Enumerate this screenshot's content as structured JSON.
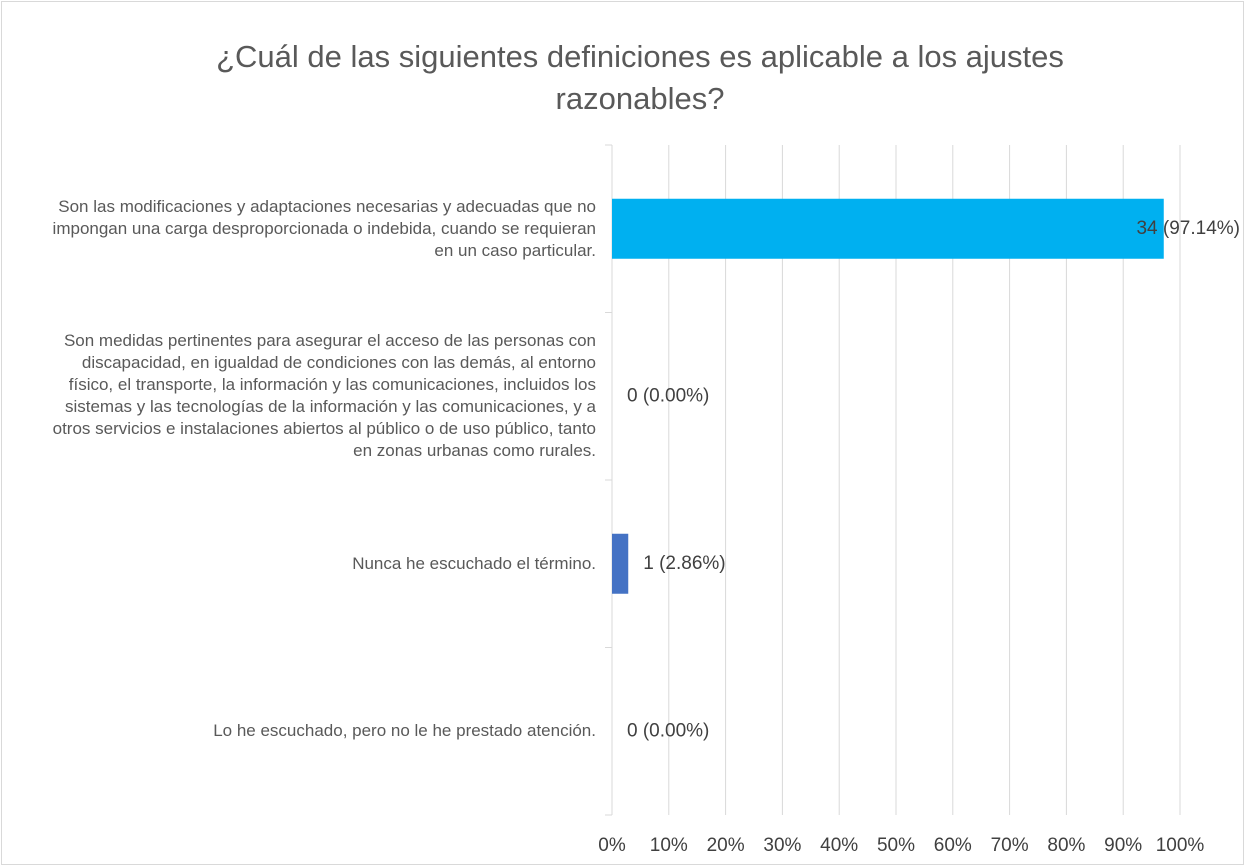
{
  "chart_data": {
    "type": "barh",
    "title": "¿Cuál de las siguientes definiciones es aplicable a los ajustes razonables?",
    "categories": [
      "Son las modificaciones y adaptaciones necesarias y adecuadas que no impongan una carga desproporcionada o indebida, cuando se requieran en un caso particular.",
      "Son medidas pertinentes para asegurar el acceso de las personas con discapacidad, en igualdad de condiciones con las demás, al entorno físico, el transporte, la información y las comunicaciones, incluidos los sistemas y las tecnologías de la información y las comunicaciones, y a otros servicios e instalaciones abiertos al público o de uso público, tanto en zonas urbanas como rurales.",
      "Nunca he escuchado el término.",
      "Lo he escuchado, pero no le he prestado atención."
    ],
    "values": [
      97.14,
      0,
      2.86,
      0
    ],
    "value_labels": [
      "34 (97.14%)",
      "0 (0.00%)",
      "1 (2.86%)",
      "0 (0.00%)"
    ],
    "colors": [
      "#00b0f0",
      "#00b0f0",
      "#4472c4",
      "#4472c4"
    ],
    "xlim": [
      0,
      100
    ],
    "xticks": [
      {
        "value": 0,
        "label": "0%"
      },
      {
        "value": 10,
        "label": "10%"
      },
      {
        "value": 20,
        "label": "20%"
      },
      {
        "value": 30,
        "label": "30%"
      },
      {
        "value": 40,
        "label": "40%"
      },
      {
        "value": 50,
        "label": "50%"
      },
      {
        "value": 60,
        "label": "60%"
      },
      {
        "value": 70,
        "label": "70%"
      },
      {
        "value": 80,
        "label": "80%"
      },
      {
        "value": 90,
        "label": "90%"
      },
      {
        "value": 100,
        "label": "100%"
      }
    ],
    "grid": true
  }
}
